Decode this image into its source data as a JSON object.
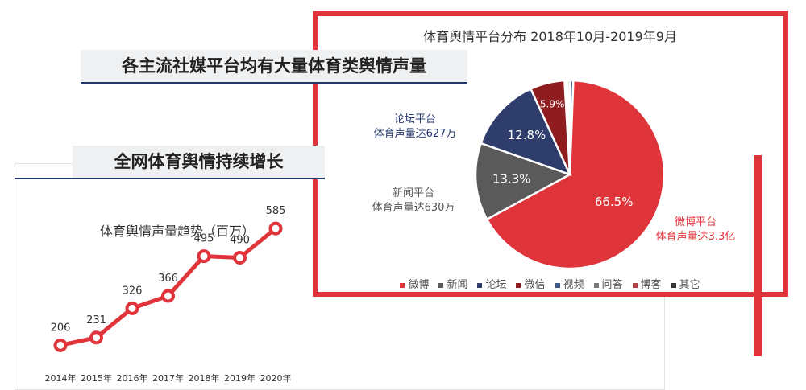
{
  "banners": {
    "platform": "各主流社媒平台均有大量体育类舆情声量",
    "growth": "全网体育舆情持续增长"
  },
  "chart_data": [
    {
      "type": "line",
      "title": "体育舆情声量趋势（百万）",
      "categories": [
        "2014年",
        "2015年",
        "2016年",
        "2017年",
        "2018年",
        "2019年",
        "2020年"
      ],
      "values": [
        206,
        231,
        326,
        366,
        495,
        490,
        585
      ],
      "ylim": [
        100,
        700
      ],
      "line_color": "#e0343b"
    },
    {
      "type": "pie",
      "title": "体育舆情平台分布  2018年10月-2019年9月",
      "slices": [
        {
          "name": "微博",
          "value": 66.5,
          "label": "66.5%",
          "color": "#e0343b"
        },
        {
          "name": "新闻",
          "value": 13.3,
          "label": "13.3%",
          "color": "#5a5a5a"
        },
        {
          "name": "论坛",
          "value": 12.8,
          "label": "12.8%",
          "color": "#2e3d6b"
        },
        {
          "name": "微信",
          "value": 5.9,
          "label": "5.9%",
          "color": "#8f1d20"
        },
        {
          "name": "视频",
          "value": 0.6,
          "label": "",
          "color": "#3d5a8c"
        },
        {
          "name": "问答",
          "value": 0.4,
          "label": "",
          "color": "#7a7a7a"
        },
        {
          "name": "博客",
          "value": 0.3,
          "label": "",
          "color": "#b04045"
        },
        {
          "name": "其它",
          "value": 0.2,
          "label": "",
          "color": "#333333"
        }
      ],
      "legend": [
        "微博",
        "新闻",
        "论坛",
        "微信",
        "视频",
        "问答",
        "博客",
        "其它"
      ],
      "callouts": {
        "weibo": {
          "line1": "微博平台",
          "line2": "体育声量达3.3亿",
          "color": "#e0343b"
        },
        "news": {
          "line1": "新闻平台",
          "line2": "体育声量达630万",
          "color": "#555555"
        },
        "forum": {
          "line1": "论坛平台",
          "line2": "体育声量达627万",
          "color": "#24376b"
        }
      }
    }
  ]
}
